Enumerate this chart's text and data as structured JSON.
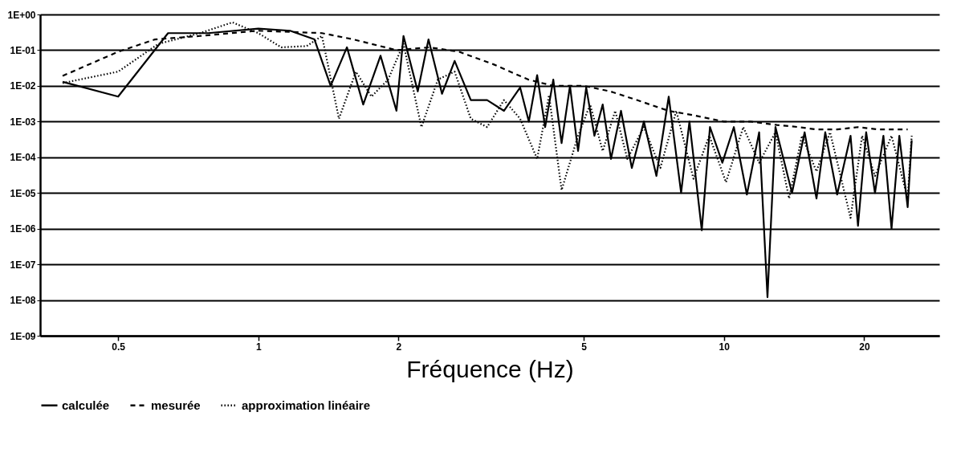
{
  "chart_data": {
    "type": "line",
    "xlabel": "Fréquence (Hz)",
    "log": "xy",
    "grid": "y",
    "legend": "bottom",
    "marker": "none",
    "xlim": [
      0.34,
      29
    ],
    "xticks": [
      0.5,
      1,
      2,
      5,
      10,
      20
    ],
    "ylim": [
      1e-09,
      1
    ],
    "yticks": [
      {
        "value": 1,
        "label": "1E+00"
      },
      {
        "value": 0.1,
        "label": "1E-01"
      },
      {
        "value": 0.01,
        "label": "1E-02"
      },
      {
        "value": 0.001,
        "label": "1E-03"
      },
      {
        "value": 0.0001,
        "label": "1E-04"
      },
      {
        "value": 1e-05,
        "label": "1E-05"
      },
      {
        "value": 1e-06,
        "label": "1E-06"
      },
      {
        "value": 1e-07,
        "label": "1E-07"
      },
      {
        "value": 1e-08,
        "label": "1E-08"
      },
      {
        "value": 1e-09,
        "label": "1E-09"
      }
    ],
    "series": [
      {
        "name": "calculée",
        "color": "#000000",
        "line_style": "solid",
        "x": [
          0.38,
          0.5,
          0.64,
          0.78,
          1,
          1.17,
          1.32,
          1.43,
          1.55,
          1.68,
          1.83,
          1.98,
          2.05,
          2.2,
          2.32,
          2.48,
          2.64,
          2.86,
          3.1,
          3.37,
          3.65,
          3.81,
          3.97,
          4.13,
          4.3,
          4.48,
          4.67,
          4.86,
          5.06,
          5.27,
          5.49,
          5.72,
          6.01,
          6.34,
          6.73,
          7.16,
          7.61,
          8.09,
          8.43,
          8.96,
          9.33,
          9.92,
          10.5,
          11.2,
          11.9,
          12.4,
          12.9,
          14,
          14.9,
          15.8,
          16.5,
          17.5,
          18.7,
          19.4,
          20.2,
          21.1,
          22,
          22.9,
          23.8,
          24.8,
          25.3
        ],
        "values": [
          0.013,
          0.005,
          0.3,
          0.3,
          0.4,
          0.35,
          0.2,
          0.01,
          0.12,
          0.003,
          0.07,
          0.002,
          0.25,
          0.007,
          0.2,
          0.006,
          0.05,
          0.004,
          0.004,
          0.002,
          0.009,
          0.001,
          0.02,
          0.0007,
          0.015,
          0.00025,
          0.01,
          0.00015,
          0.009,
          0.0004,
          0.003,
          9e-05,
          0.002,
          5e-05,
          0.001,
          3e-05,
          0.005,
          1e-05,
          0.001,
          9e-07,
          0.0007,
          7e-05,
          0.0007,
          9e-06,
          0.0005,
          1.2e-08,
          0.0007,
          1e-05,
          0.0005,
          7e-06,
          0.0005,
          9e-06,
          0.0004,
          1.2e-06,
          0.0005,
          1e-05,
          0.0004,
          1e-06,
          0.0004,
          4e-06,
          0.0003
        ]
      },
      {
        "name": "mesurée",
        "color": "#000000",
        "line_style": "dashed",
        "x": [
          0.38,
          0.5,
          0.6,
          0.75,
          1,
          1.37,
          1.6,
          1.98,
          2.33,
          2.7,
          3.2,
          3.8,
          4.3,
          5,
          5.7,
          6.5,
          7.6,
          8.6,
          10,
          11.4,
          13,
          14.5,
          15.8,
          17.5,
          19.4,
          21.5,
          23,
          24.8
        ],
        "values": [
          0.019,
          0.09,
          0.2,
          0.25,
          0.35,
          0.3,
          0.2,
          0.1,
          0.12,
          0.09,
          0.04,
          0.015,
          0.01,
          0.01,
          0.007,
          0.004,
          0.002,
          0.0015,
          0.001,
          0.001,
          0.0008,
          0.0007,
          0.0006,
          0.0006,
          0.0007,
          0.0006,
          0.0006,
          0.0006
        ]
      },
      {
        "name": "approximation linéaire",
        "color": "#000000",
        "line_style": "dotted",
        "x": [
          0.38,
          0.5,
          0.61,
          0.75,
          0.88,
          1,
          1.12,
          1.27,
          1.37,
          1.49,
          1.62,
          1.75,
          1.9,
          2.05,
          2.24,
          2.43,
          2.64,
          2.86,
          3.1,
          3.37,
          3.65,
          3.97,
          4.21,
          4.48,
          4.86,
          5.16,
          5.49,
          5.84,
          6.2,
          6.73,
          7.3,
          7.9,
          8.6,
          9.3,
          10.1,
          11,
          11.9,
          12.9,
          13.8,
          14.7,
          15.8,
          16.9,
          18.7,
          19.8,
          21.1,
          22.9,
          24.8,
          25.3
        ],
        "values": [
          0.012,
          0.025,
          0.15,
          0.3,
          0.6,
          0.3,
          0.12,
          0.13,
          0.25,
          0.0012,
          0.025,
          0.005,
          0.015,
          0.15,
          0.0007,
          0.015,
          0.025,
          0.0012,
          0.0007,
          0.004,
          0.0012,
          9e-05,
          0.0055,
          1.2e-05,
          0.0004,
          0.003,
          0.00015,
          0.002,
          9e-05,
          0.0007,
          5e-05,
          0.002,
          2.5e-05,
          0.0004,
          2e-05,
          0.0007,
          7e-05,
          0.0005,
          7e-06,
          0.0004,
          4e-05,
          0.0005,
          2e-06,
          0.0004,
          3e-05,
          0.0004,
          7e-06,
          0.0004
        ]
      }
    ]
  }
}
